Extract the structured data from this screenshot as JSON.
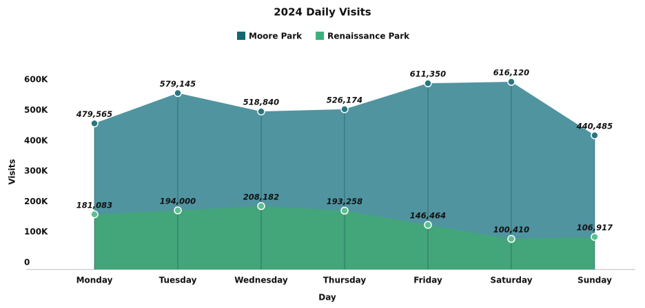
{
  "chart_data": {
    "type": "area",
    "title": "2024 Daily Visits",
    "x_label": "Day",
    "y_label": "Visits",
    "categories": [
      "Monday",
      "Tuesday",
      "Wednesday",
      "Thursday",
      "Friday",
      "Saturday",
      "Sunday"
    ],
    "series": [
      {
        "name": "Moore Park",
        "color": "#14676f",
        "fill": "#5094a0",
        "values": [
          479565,
          579145,
          518840,
          526174,
          611350,
          616120,
          440485
        ],
        "value_labels": [
          "479,565",
          "579,145",
          "518,840",
          "526,174",
          "611,350",
          "616,120",
          "440,485"
        ]
      },
      {
        "name": "Renaissance Park",
        "color": "#3cb07a",
        "fill": "#43a57a",
        "values": [
          181083,
          194000,
          208182,
          193258,
          146464,
          100410,
          106917
        ],
        "value_labels": [
          "181,083",
          "194,000",
          "208,182",
          "193,258",
          "146,464",
          "100,410",
          "106,917"
        ]
      }
    ],
    "ylim": [
      0,
      650000
    ],
    "yticks": [
      0,
      {
        "value": 100000,
        "label": "100K"
      },
      {
        "value": 200000,
        "label": "200K"
      },
      {
        "value": 300000,
        "label": "300K"
      },
      {
        "value": 400000,
        "label": "400K"
      },
      {
        "value": 500000,
        "label": "500K"
      },
      {
        "value": 600000,
        "label": "600K"
      }
    ],
    "legend": "top"
  }
}
